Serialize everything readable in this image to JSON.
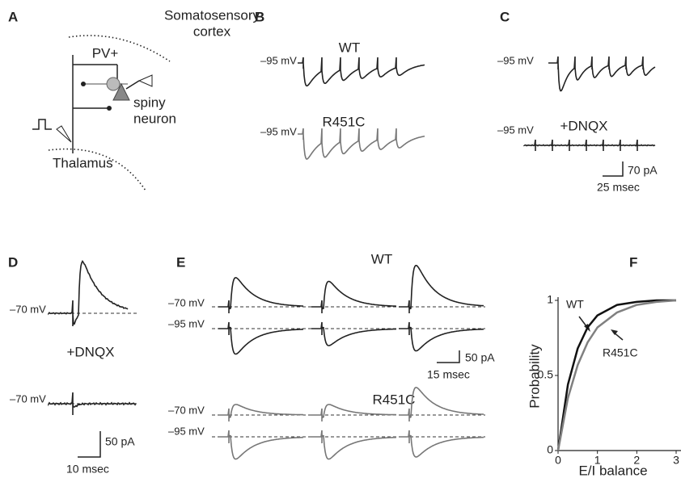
{
  "panel_a": {
    "label": "A",
    "region_lines": [
      "Somatosensory",
      "cortex"
    ],
    "cell_type": "PV+",
    "neuron_lines": [
      "spiny",
      "neuron"
    ],
    "origin": "Thalamus"
  },
  "panel_b": {
    "label": "B",
    "traces": [
      {
        "genotype": "WT",
        "holding": "–95 mV"
      },
      {
        "genotype": "R451C",
        "holding": "–95 mV"
      }
    ]
  },
  "panel_c": {
    "label": "C",
    "holding": [
      "–95 mV",
      "–95 mV"
    ],
    "treatment": "+DNQX",
    "scale_y": "70 pA",
    "scale_x": "25 msec"
  },
  "panel_d": {
    "label": "D",
    "holding": [
      "–70 mV",
      "–70 mV"
    ],
    "treatment": "+DNQX",
    "scale_y": "50 pA",
    "scale_x": "10 msec"
  },
  "panel_e": {
    "label": "E",
    "groups": [
      {
        "genotype": "WT",
        "holding": [
          "–70 mV",
          "–95 mV"
        ]
      },
      {
        "genotype": "R451C",
        "holding": [
          "–70 mV",
          "–95 mV"
        ]
      }
    ],
    "scale_y": "50 pA",
    "scale_x": "15 msec"
  },
  "chart_data": {
    "label": "F",
    "type": "line",
    "x_label": "E/I balance",
    "y_label": "Probability",
    "x": [
      0,
      0.25,
      0.5,
      0.75,
      1,
      1.5,
      2,
      2.5,
      3
    ],
    "series": [
      {
        "name": "WT",
        "color": "#111111",
        "values": [
          0,
          0.44,
          0.68,
          0.82,
          0.9,
          0.97,
          0.99,
          1.0,
          1.0
        ]
      },
      {
        "name": "R451C",
        "color": "#808080",
        "values": [
          0,
          0.35,
          0.57,
          0.72,
          0.82,
          0.92,
          0.97,
          0.99,
          1.0
        ]
      }
    ],
    "xlim": [
      0,
      3
    ],
    "ylim": [
      0,
      1
    ],
    "xticks": [
      0,
      1,
      2,
      3
    ],
    "yticks": [
      0,
      0.5,
      1
    ]
  }
}
